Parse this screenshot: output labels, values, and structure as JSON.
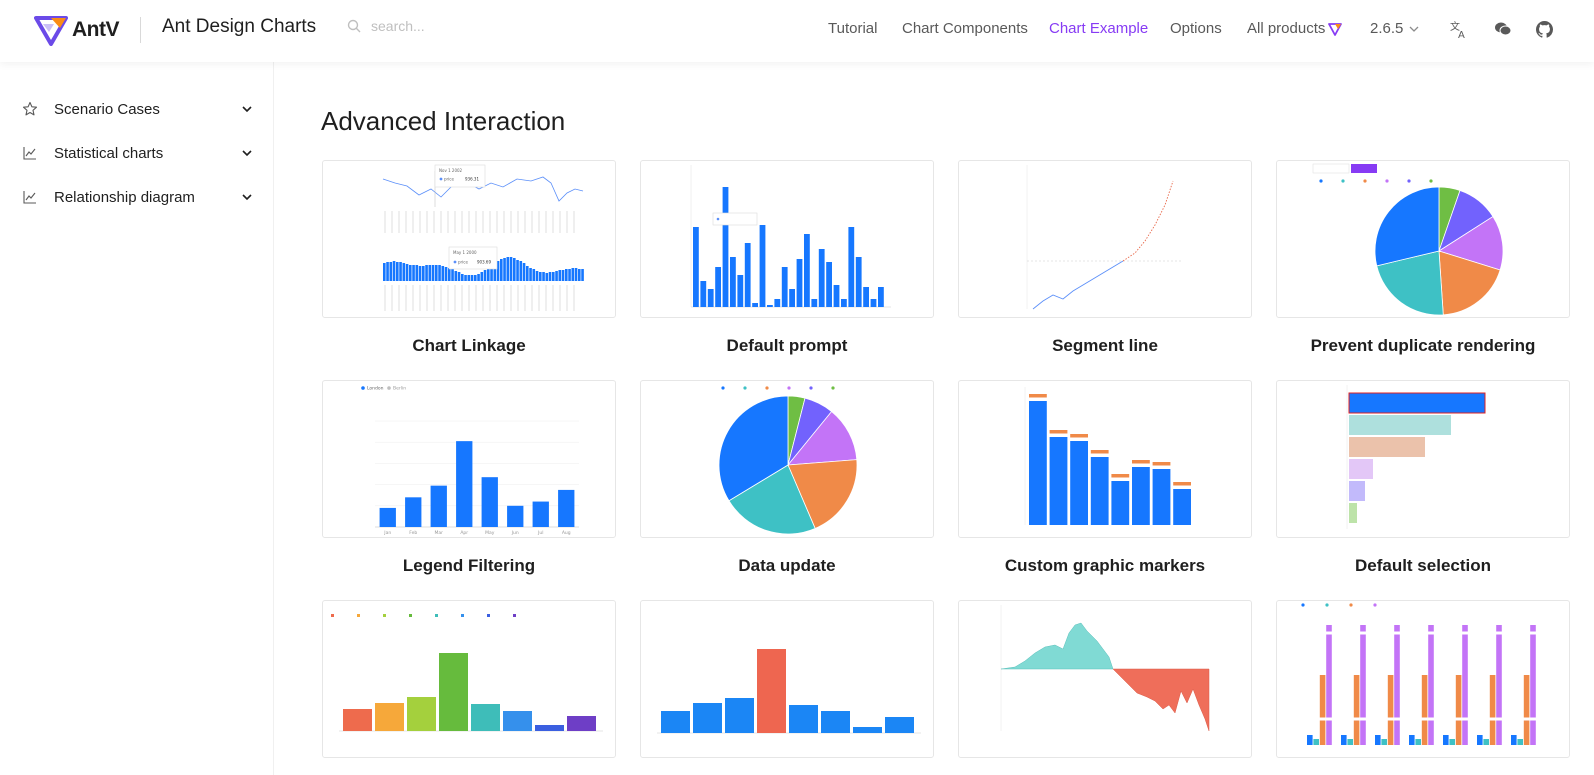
{
  "header": {
    "logo_text": "AntV",
    "site_title": "Ant Design Charts",
    "search_placeholder": "search...",
    "nav": [
      "Tutorial",
      "Chart Components",
      "Chart Example",
      "Options",
      "All products"
    ],
    "version": "2.6.5",
    "colors": {
      "accent": "#873bf4",
      "text": "#595959"
    },
    "icons": [
      "search-icon",
      "translate-icon",
      "wechat-icon",
      "github-icon"
    ]
  },
  "sidebar": {
    "items": [
      {
        "label": "Scenario Cases",
        "icon": "star-icon"
      },
      {
        "label": "Statistical charts",
        "icon": "line-chart-icon"
      },
      {
        "label": "Relationship diagram",
        "icon": "line-chart-icon"
      }
    ]
  },
  "main": {
    "title": "Advanced Interaction",
    "cards": [
      {
        "title": "Chart Linkage"
      },
      {
        "title": "Default prompt"
      },
      {
        "title": "Segment line"
      },
      {
        "title": "Prevent duplicate rendering"
      },
      {
        "title": "Legend Filtering"
      },
      {
        "title": "Data update"
      },
      {
        "title": "Custom graphic markers"
      },
      {
        "title": "Default selection"
      },
      {
        "title": ""
      },
      {
        "title": ""
      },
      {
        "title": ""
      },
      {
        "title": ""
      }
    ]
  },
  "thumbnails": {
    "chart_linkage": {
      "tooltip_top": {
        "date": "Nov 1 2002",
        "series": "price",
        "value": "936.31"
      },
      "tooltip_bottom": {
        "date": "May 1 2000",
        "series": "price",
        "value": "903.69"
      }
    },
    "legend_filtering": {
      "type": "bar",
      "categories": [
        "Jan",
        "Feb",
        "Mar",
        "Apr",
        "May",
        "Jun",
        "Jul",
        "Aug"
      ],
      "values": [
        18,
        28,
        39,
        81,
        47,
        20,
        24,
        35
      ],
      "legend": [
        "London",
        "Berlin"
      ],
      "ylim": [
        0,
        100
      ]
    },
    "data_update": {
      "type": "pie",
      "values": [
        34,
        23,
        20,
        13,
        7,
        4
      ]
    },
    "prevent_duplicate": {
      "type": "pie",
      "values": [
        27,
        21,
        18,
        13,
        10,
        5
      ]
    }
  }
}
